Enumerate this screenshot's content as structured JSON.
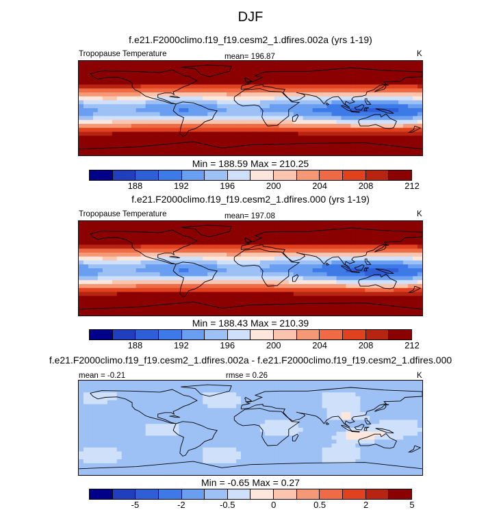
{
  "title": "DJF",
  "palette": [
    "#00008b",
    "#1f3fbf",
    "#2e5fd8",
    "#3d7ae8",
    "#6a9ef0",
    "#9dc0f5",
    "#cfe0fa",
    "#fde6dc",
    "#fbc4ae",
    "#f59876",
    "#ee6b45",
    "#e0421f",
    "#b82412",
    "#8b0000"
  ],
  "panels": [
    {
      "case_title": "f.e21.F2000climo.f19_f19.cesm2_1.dfires.002a (yrs 1-19)",
      "left_label": "Tropopause Temperature",
      "center_label": "mean= 196.87",
      "right_label": "K",
      "minmax": "Min = 188.59 Max = 210.25",
      "ticks": [
        "188",
        "192",
        "196",
        "200",
        "204",
        "208",
        "212"
      ],
      "field": "abs",
      "warm_pool_strength": 1.0
    },
    {
      "case_title": "f.e21.F2000climo.f19_f19.cesm2_1.dfires.000 (yrs 1-19)",
      "left_label": "Tropopause Temperature",
      "center_label": "mean= 197.08",
      "right_label": "K",
      "minmax": "Min = 188.43 Max = 210.39",
      "ticks": [
        "188",
        "192",
        "196",
        "200",
        "204",
        "208",
        "212"
      ],
      "field": "abs",
      "warm_pool_strength": 1.05
    },
    {
      "case_title": "f.e21.F2000climo.f19_f19.cesm2_1.dfires.002a - f.e21.F2000climo.f19_f19.cesm2_1.dfires.000",
      "left_label": "mean =  -0.21",
      "center_label": "rmse =  0.26",
      "right_label": "K",
      "minmax": "Min =  -0.65 Max =   0.27",
      "ticks": [
        "-5",
        "-2",
        "-0.5",
        "0",
        "0.5",
        "2",
        "5"
      ],
      "field": "diff",
      "warm_pool_strength": 1.0
    }
  ]
}
